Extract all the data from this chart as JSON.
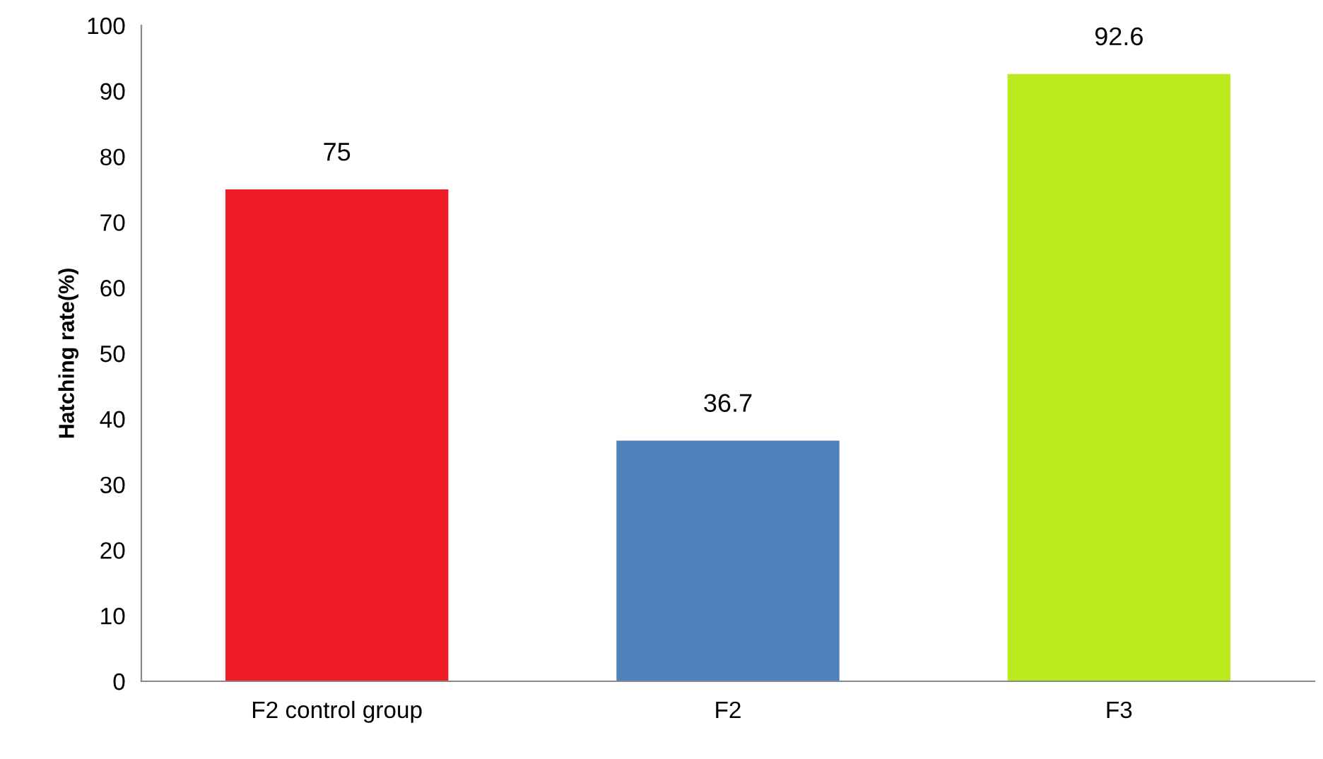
{
  "chart_data": {
    "type": "bar",
    "ylabel": "Hatching rate(%)",
    "categories": [
      "F2 control group",
      "F2",
      "F3"
    ],
    "values": [
      75,
      36.7,
      92.6
    ],
    "colors": [
      "#ee1c24",
      "#4f81bd",
      "#bbeb1f"
    ],
    "data_labels": true,
    "ylim": [
      0,
      100
    ],
    "yticks": [
      0,
      10,
      20,
      30,
      40,
      50,
      60,
      70,
      80,
      90,
      100
    ],
    "grid": false
  }
}
